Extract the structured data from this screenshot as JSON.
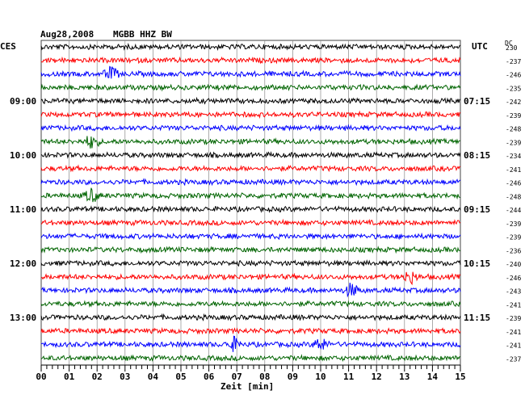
{
  "header": {
    "date": "Aug28,2008",
    "station": "MGBB HHZ BW",
    "left_tz": "CES",
    "right_tz": "UTC",
    "dc_label": "DC"
  },
  "chart_data": {
    "type": "line",
    "title": "Aug28,2008  MGBB HHZ BW",
    "xlabel": "Zeit [min]",
    "x_ticks": [
      "00",
      "01",
      "02",
      "03",
      "04",
      "05",
      "06",
      "07",
      "08",
      "09",
      "10",
      "11",
      "12",
      "13",
      "14",
      "15"
    ],
    "xlim": [
      0,
      15
    ],
    "left_hour_labels": [
      {
        "row": 4,
        "label": "09:00"
      },
      {
        "row": 8,
        "label": "10:00"
      },
      {
        "row": 12,
        "label": "11:00"
      },
      {
        "row": 16,
        "label": "12:00"
      },
      {
        "row": 20,
        "label": "13:00"
      }
    ],
    "right_hour_labels": [
      {
        "row": 4,
        "label": "07:15"
      },
      {
        "row": 8,
        "label": "08:15"
      },
      {
        "row": 12,
        "label": "09:15"
      },
      {
        "row": 16,
        "label": "10:15"
      },
      {
        "row": 20,
        "label": "11:15"
      }
    ],
    "dc_offsets": [
      "230",
      "-237",
      "-246",
      "-235",
      "-242",
      "-239",
      "-248",
      "-239",
      "-234",
      "-241",
      "-246",
      "-248",
      "-244",
      "-239",
      "-239",
      "-236",
      "-240",
      "-246",
      "-243",
      "-241",
      "-239",
      "-241",
      "-241",
      "-237"
    ],
    "trace_colors": [
      "#000000",
      "#ff0000",
      "#0000ff",
      "#006400"
    ],
    "grid": true,
    "events": [
      {
        "trace": 2,
        "minute": 2.5
      },
      {
        "trace": 7,
        "minute": 1.8
      },
      {
        "trace": 11,
        "minute": 1.8
      },
      {
        "trace": 17,
        "minute": 13.2
      },
      {
        "trace": 18,
        "minute": 11.1
      },
      {
        "trace": 22,
        "minute": 6.9
      },
      {
        "trace": 22,
        "minute": 10.0
      }
    ]
  }
}
